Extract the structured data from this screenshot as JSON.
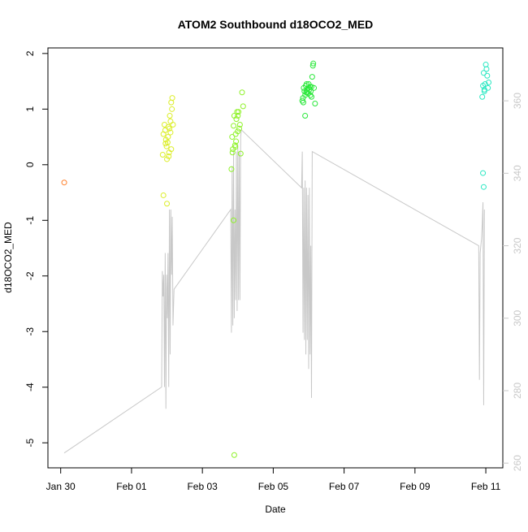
{
  "chart_data": {
    "type": "scatter",
    "title": "ATOM2 Southbound d18OCO2_MED",
    "xlabel": "Date",
    "ylabel": "d18OCO2_MED",
    "x_unit": "days",
    "x_ticks": [
      {
        "value": 0,
        "label": "Jan 30"
      },
      {
        "value": 2,
        "label": "Feb 01"
      },
      {
        "value": 4,
        "label": "Feb 03"
      },
      {
        "value": 6,
        "label": "Feb 05"
      },
      {
        "value": 8,
        "label": "Feb 07"
      },
      {
        "value": 10,
        "label": "Feb 09"
      },
      {
        "value": 12,
        "label": "Feb 11"
      }
    ],
    "xlim": [
      -0.36,
      12.48
    ],
    "ylim": [
      -5.45,
      2.1
    ],
    "y_ticks": [
      -5,
      -4,
      -3,
      -2,
      -1,
      0,
      1,
      2
    ],
    "y2_ticks": [
      260,
      280,
      300,
      320,
      340,
      360
    ],
    "y2lim": [
      258.7,
      374.6
    ],
    "grid": false,
    "legend": "none",
    "series": [
      {
        "type": "scatter",
        "color": "#ff7f2a",
        "points": [
          [
            0.1,
            -0.32
          ]
        ]
      },
      {
        "type": "scatter",
        "color": "#dcee2a",
        "points": [
          [
            2.88,
            0.18
          ],
          [
            2.9,
            0.55
          ],
          [
            2.93,
            0.72
          ],
          [
            2.95,
            0.62
          ],
          [
            2.97,
            0.45
          ],
          [
            2.99,
            0.33
          ],
          [
            3.0,
            0.1
          ],
          [
            3.02,
            0.4
          ],
          [
            3.04,
            0.68
          ],
          [
            3.06,
            0.22
          ],
          [
            3.08,
            0.88
          ],
          [
            3.1,
            0.58
          ],
          [
            3.12,
            1.12
          ],
          [
            3.14,
            1.0
          ],
          [
            3.15,
            1.2
          ],
          [
            3.17,
            0.72
          ],
          [
            3.05,
            0.15
          ],
          [
            3.12,
            0.28
          ],
          [
            2.9,
            -0.55
          ],
          [
            3.0,
            -0.7
          ],
          [
            3.03,
            0.5
          ],
          [
            2.96,
            0.38
          ],
          [
            3.1,
            0.78
          ],
          [
            3.07,
            0.65
          ]
        ]
      },
      {
        "type": "scatter",
        "color": "#8ff22a",
        "points": [
          [
            4.82,
            -0.08
          ],
          [
            4.84,
            0.5
          ],
          [
            4.86,
            0.28
          ],
          [
            4.88,
            0.7
          ],
          [
            4.9,
            0.88
          ],
          [
            4.92,
            0.35
          ],
          [
            4.94,
            0.55
          ],
          [
            4.96,
            0.82
          ],
          [
            4.98,
            0.95
          ],
          [
            5.0,
            0.6
          ],
          [
            5.02,
            0.95
          ],
          [
            5.04,
            0.65
          ],
          [
            5.06,
            0.72
          ],
          [
            5.08,
            0.2
          ],
          [
            5.12,
            1.3
          ],
          [
            5.15,
            1.05
          ],
          [
            4.88,
            -1.0
          ],
          [
            4.9,
            -5.22
          ],
          [
            4.85,
            0.22
          ],
          [
            4.95,
            0.42
          ],
          [
            5.0,
            0.88
          ],
          [
            4.93,
            0.32
          ]
        ]
      },
      {
        "type": "scatter",
        "color": "#2ae83a",
        "points": [
          [
            6.82,
            1.15
          ],
          [
            6.84,
            1.2
          ],
          [
            6.86,
            1.38
          ],
          [
            6.88,
            1.32
          ],
          [
            6.9,
            1.25
          ],
          [
            6.92,
            1.42
          ],
          [
            6.94,
            1.45
          ],
          [
            6.96,
            1.3
          ],
          [
            6.98,
            1.28
          ],
          [
            7.0,
            1.38
          ],
          [
            7.02,
            1.35
          ],
          [
            7.04,
            1.4
          ],
          [
            7.06,
            1.32
          ],
          [
            7.08,
            1.22
          ],
          [
            7.1,
            1.58
          ],
          [
            7.12,
            1.78
          ],
          [
            7.13,
            1.82
          ],
          [
            7.15,
            1.38
          ],
          [
            7.18,
            1.1
          ],
          [
            6.9,
            0.88
          ],
          [
            6.85,
            1.12
          ],
          [
            6.95,
            1.35
          ],
          [
            7.05,
            1.25
          ],
          [
            7.0,
            1.45
          ],
          [
            6.93,
            1.3
          ],
          [
            7.08,
            1.4
          ]
        ]
      },
      {
        "type": "scatter",
        "color": "#2ae8c2",
        "points": [
          [
            11.9,
            1.22
          ],
          [
            11.92,
            1.42
          ],
          [
            11.94,
            1.65
          ],
          [
            11.96,
            1.35
          ],
          [
            11.98,
            1.45
          ],
          [
            12.0,
            1.8
          ],
          [
            12.02,
            1.72
          ],
          [
            12.04,
            1.6
          ],
          [
            12.06,
            1.38
          ],
          [
            12.08,
            1.48
          ],
          [
            11.92,
            -0.15
          ],
          [
            11.94,
            -0.4
          ],
          [
            11.96,
            1.32
          ]
        ]
      },
      {
        "type": "line",
        "axis": "right",
        "color": "#c8c8c8",
        "points": [
          [
            0.1,
            262.8
          ],
          [
            2.85,
            281
          ],
          [
            2.87,
            313
          ],
          [
            2.89,
            306
          ],
          [
            2.91,
            312
          ],
          [
            2.93,
            281
          ],
          [
            2.95,
            318
          ],
          [
            2.97,
            275
          ],
          [
            2.99,
            312
          ],
          [
            3.01,
            300
          ],
          [
            3.03,
            318
          ],
          [
            3.05,
            281
          ],
          [
            3.07,
            330
          ],
          [
            3.09,
            290
          ],
          [
            3.11,
            330
          ],
          [
            3.13,
            312
          ],
          [
            3.15,
            328
          ],
          [
            3.17,
            298
          ],
          [
            3.2,
            308
          ],
          [
            4.8,
            330
          ],
          [
            4.82,
            296
          ],
          [
            4.84,
            342
          ],
          [
            4.86,
            298
          ],
          [
            4.88,
            346
          ],
          [
            4.9,
            300
          ],
          [
            4.92,
            330
          ],
          [
            4.94,
            305
          ],
          [
            4.96,
            346
          ],
          [
            4.98,
            302
          ],
          [
            5.0,
            348
          ],
          [
            5.02,
            305
          ],
          [
            5.04,
            346
          ],
          [
            5.06,
            305
          ],
          [
            5.08,
            350
          ],
          [
            5.1,
            352
          ],
          [
            6.8,
            336
          ],
          [
            6.82,
            346
          ],
          [
            6.84,
            296
          ],
          [
            6.86,
            336
          ],
          [
            6.88,
            294
          ],
          [
            6.9,
            338
          ],
          [
            6.92,
            290
          ],
          [
            6.94,
            336
          ],
          [
            6.96,
            294
          ],
          [
            6.98,
            334
          ],
          [
            7.0,
            286
          ],
          [
            7.02,
            336
          ],
          [
            7.04,
            290
          ],
          [
            7.06,
            320
          ],
          [
            7.08,
            278
          ],
          [
            7.1,
            346
          ],
          [
            11.8,
            320
          ],
          [
            11.82,
            283
          ],
          [
            11.84,
            318
          ],
          [
            11.86,
            320
          ],
          [
            11.88,
            322
          ],
          [
            11.9,
            326
          ],
          [
            11.92,
            332
          ],
          [
            11.94,
            276
          ],
          [
            11.96,
            330
          ]
        ]
      }
    ]
  }
}
